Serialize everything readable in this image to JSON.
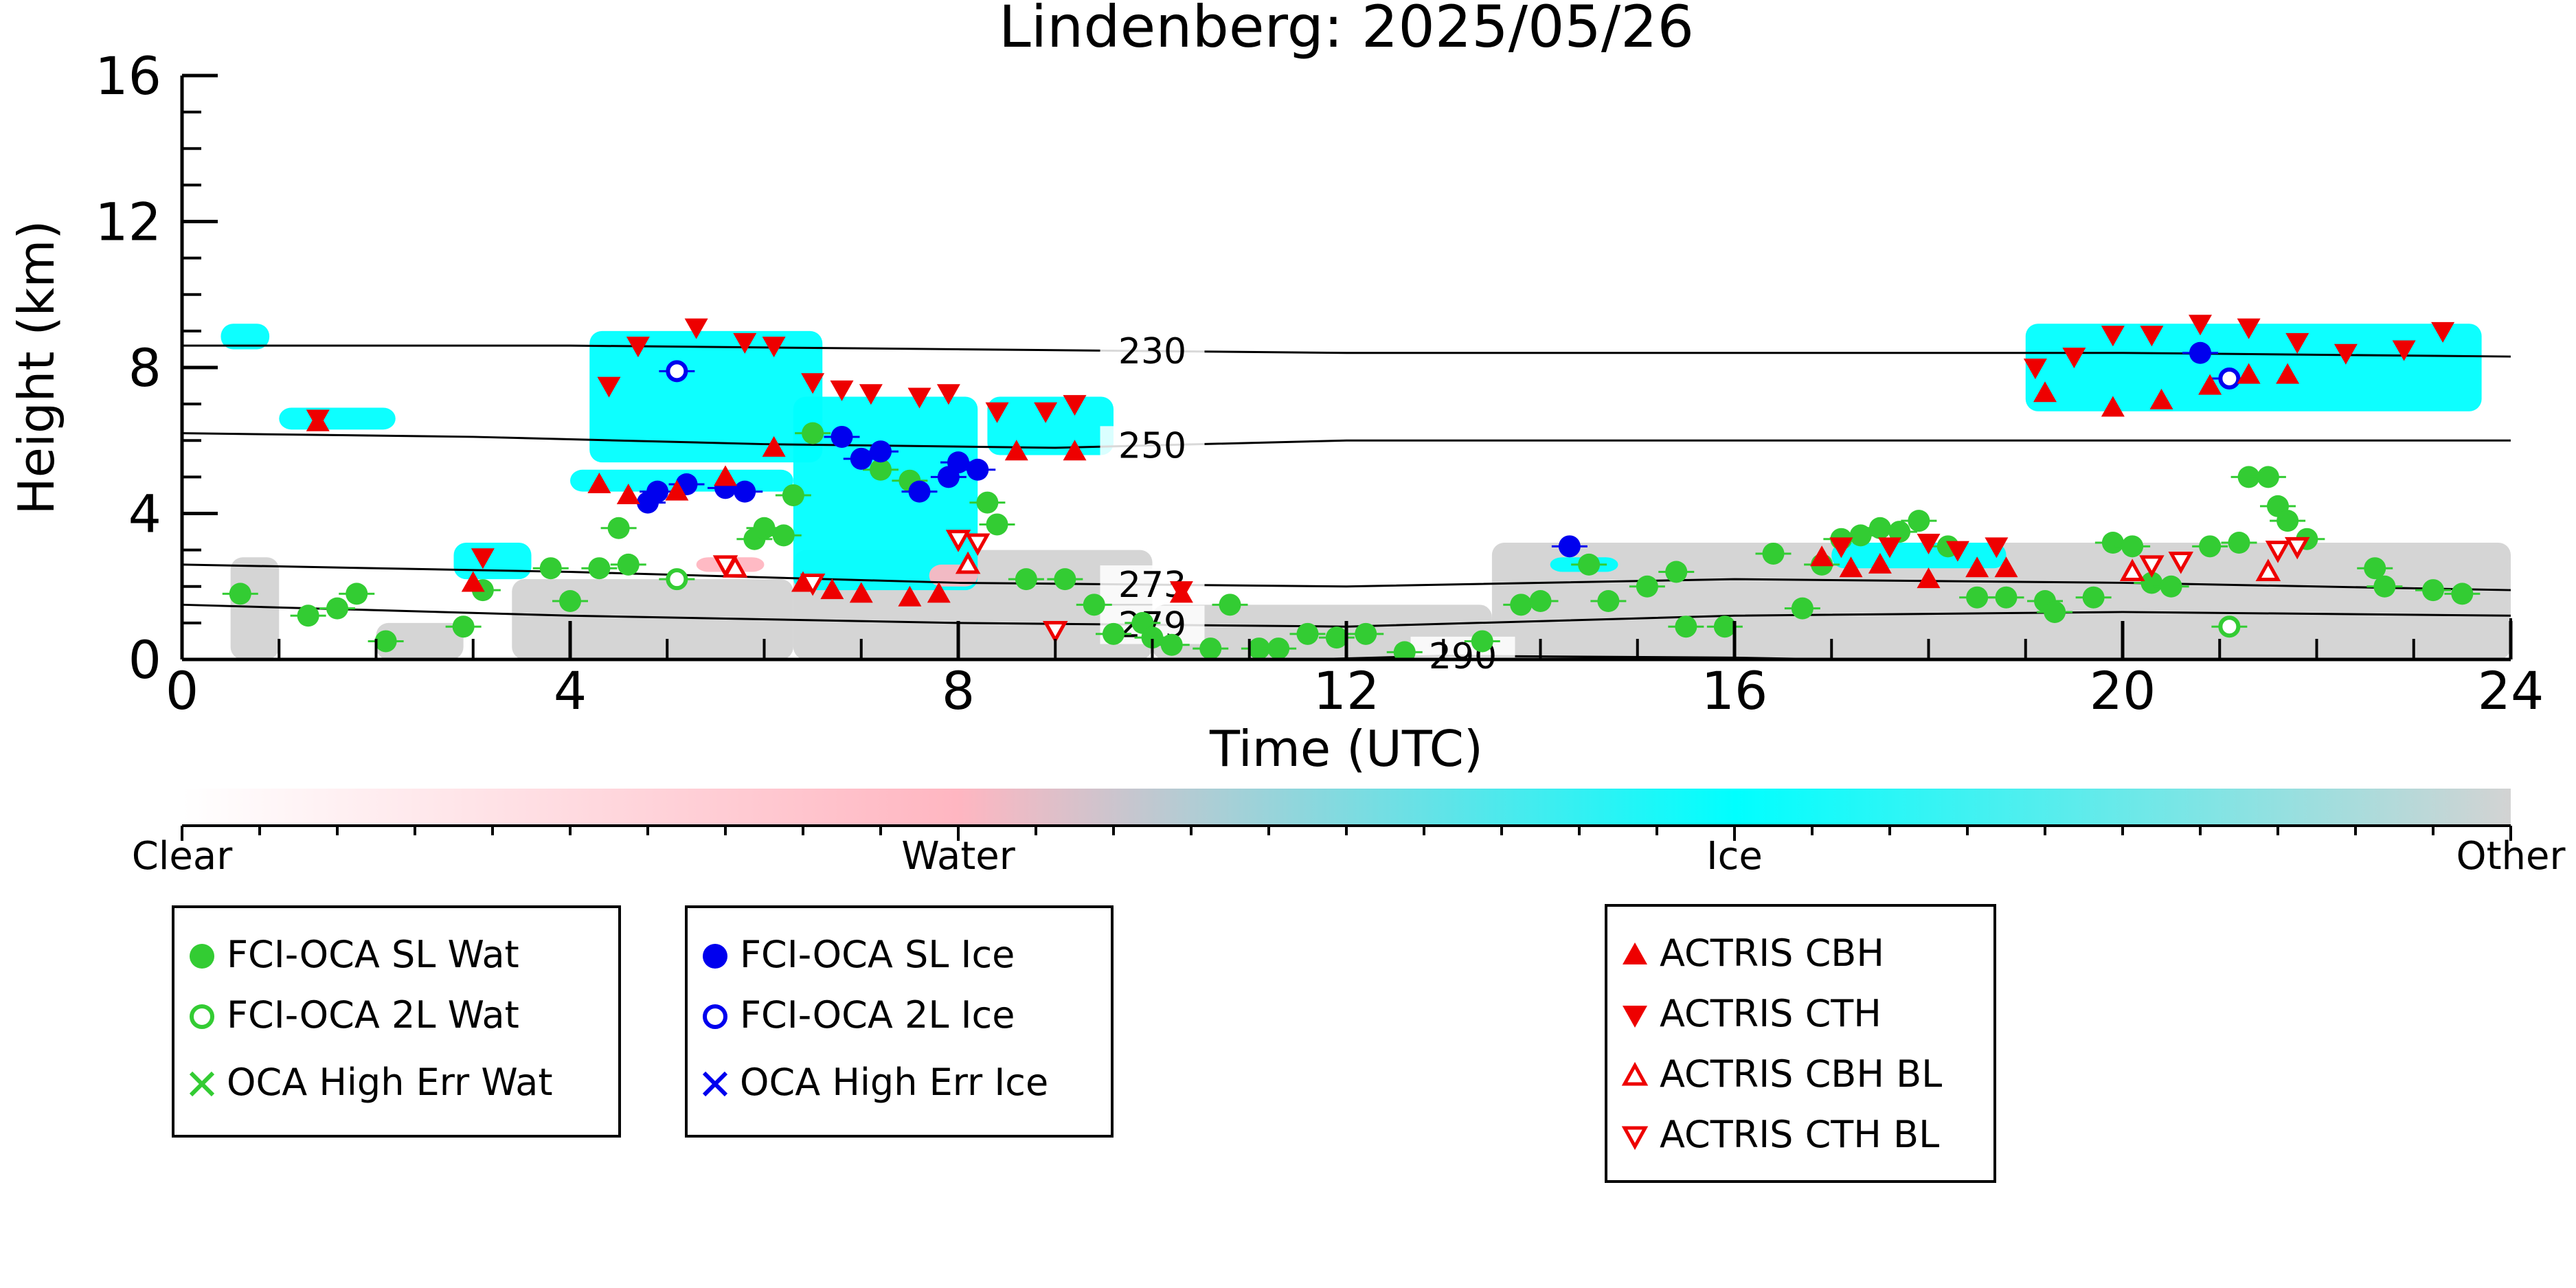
{
  "chart_data": {
    "type": "scatter",
    "title": "Lindenberg: 2025/05/26",
    "xlabel": "Time (UTC)",
    "ylabel": "Height (km)",
    "xlim": [
      0,
      24
    ],
    "ylim": [
      0,
      16
    ],
    "xticks": [
      "0",
      "4",
      "8",
      "12",
      "16",
      "20",
      "24"
    ],
    "yticks": [
      "0",
      "4",
      "8",
      "12",
      "16"
    ],
    "colorbar": {
      "labels": [
        "Clear",
        "Water",
        "Ice",
        "Other"
      ],
      "colors": [
        "#ffffff",
        "#ffb6c1",
        "#00ffff",
        "#d3d3d3"
      ]
    },
    "temperature_contours": [
      {
        "label": "230",
        "label_x": 10.0,
        "points": [
          [
            0,
            8.6
          ],
          [
            4,
            8.6
          ],
          [
            8,
            8.5
          ],
          [
            12,
            8.4
          ],
          [
            16,
            8.4
          ],
          [
            20,
            8.4
          ],
          [
            24,
            8.3
          ]
        ]
      },
      {
        "label": "250",
        "label_x": 10.0,
        "points": [
          [
            0,
            6.2
          ],
          [
            3,
            6.1
          ],
          [
            6,
            5.9
          ],
          [
            9,
            5.8
          ],
          [
            12,
            6.0
          ],
          [
            16,
            6.0
          ],
          [
            20,
            6.0
          ],
          [
            24,
            6.0
          ]
        ]
      },
      {
        "label": "273",
        "label_x": 10.0,
        "points": [
          [
            0,
            2.6
          ],
          [
            4,
            2.4
          ],
          [
            8,
            2.1
          ],
          [
            12,
            2.0
          ],
          [
            16,
            2.2
          ],
          [
            20,
            2.1
          ],
          [
            24,
            1.9
          ]
        ]
      },
      {
        "label": "279",
        "label_x": 10.0,
        "points": [
          [
            0,
            1.5
          ],
          [
            4,
            1.2
          ],
          [
            8,
            1.0
          ],
          [
            12,
            0.9
          ],
          [
            16,
            1.2
          ],
          [
            20,
            1.3
          ],
          [
            24,
            1.2
          ]
        ]
      },
      {
        "label": "290",
        "label_x": 13.2,
        "points": [
          [
            11.6,
            0.0
          ],
          [
            13.0,
            0.1
          ],
          [
            16,
            0.05
          ],
          [
            17,
            0.0
          ]
        ]
      }
    ],
    "series": [
      {
        "name": "FCI-OCA SL Wat",
        "color": "#33cc33",
        "marker": "circle-filled",
        "points": [
          [
            0.6,
            1.8
          ],
          [
            1.3,
            1.2
          ],
          [
            1.6,
            1.4
          ],
          [
            1.8,
            1.8
          ],
          [
            2.1,
            0.5
          ],
          [
            2.9,
            0.9
          ],
          [
            3.1,
            1.9
          ],
          [
            3.8,
            2.5
          ],
          [
            4.0,
            1.6
          ],
          [
            4.3,
            2.5
          ],
          [
            4.5,
            3.6
          ],
          [
            4.6,
            2.6
          ],
          [
            5.9,
            3.3
          ],
          [
            6.0,
            3.6
          ],
          [
            6.2,
            3.4
          ],
          [
            6.3,
            4.5
          ],
          [
            6.5,
            6.2
          ],
          [
            7.2,
            5.2
          ],
          [
            7.5,
            4.9
          ],
          [
            8.3,
            4.3
          ],
          [
            8.4,
            3.7
          ],
          [
            8.7,
            2.2
          ],
          [
            9.1,
            2.2
          ],
          [
            9.4,
            1.5
          ],
          [
            9.6,
            0.7
          ],
          [
            9.9,
            1.0
          ],
          [
            10.0,
            0.6
          ],
          [
            10.2,
            0.4
          ],
          [
            10.6,
            0.3
          ],
          [
            10.8,
            1.5
          ],
          [
            11.1,
            0.3
          ],
          [
            11.3,
            0.3
          ],
          [
            11.6,
            0.7
          ],
          [
            11.9,
            0.6
          ],
          [
            12.2,
            0.7
          ],
          [
            12.6,
            0.2
          ],
          [
            13.4,
            0.5
          ],
          [
            13.8,
            1.5
          ],
          [
            14.0,
            1.6
          ],
          [
            14.5,
            2.6
          ],
          [
            14.7,
            1.6
          ],
          [
            15.1,
            2.0
          ],
          [
            15.4,
            2.4
          ],
          [
            15.5,
            0.9
          ],
          [
            15.9,
            0.9
          ],
          [
            16.4,
            2.9
          ],
          [
            16.7,
            1.4
          ],
          [
            16.9,
            2.6
          ],
          [
            17.1,
            3.3
          ],
          [
            17.3,
            3.4
          ],
          [
            17.5,
            3.6
          ],
          [
            17.7,
            3.5
          ],
          [
            17.9,
            3.8
          ],
          [
            18.2,
            3.1
          ],
          [
            18.5,
            1.7
          ],
          [
            18.8,
            1.7
          ],
          [
            19.2,
            1.6
          ],
          [
            19.3,
            1.3
          ],
          [
            19.7,
            1.7
          ],
          [
            19.9,
            3.2
          ],
          [
            20.1,
            3.1
          ],
          [
            20.3,
            2.1
          ],
          [
            20.5,
            2.0
          ],
          [
            20.9,
            3.1
          ],
          [
            21.2,
            3.2
          ],
          [
            21.3,
            5.0
          ],
          [
            21.5,
            5.0
          ],
          [
            21.6,
            4.2
          ],
          [
            21.7,
            3.8
          ],
          [
            21.9,
            3.3
          ],
          [
            22.6,
            2.5
          ],
          [
            22.7,
            2.0
          ],
          [
            23.2,
            1.9
          ],
          [
            23.5,
            1.8
          ]
        ]
      },
      {
        "name": "FCI-OCA 2L Wat",
        "color": "#33cc33",
        "marker": "circle-open",
        "points": [
          [
            5.1,
            2.2
          ],
          [
            21.1,
            0.9
          ]
        ]
      },
      {
        "name": "OCA High Err Wat",
        "color": "#33cc33",
        "marker": "x",
        "points": []
      },
      {
        "name": "FCI-OCA SL Ice",
        "color": "#0000ee",
        "marker": "circle-filled",
        "points": [
          [
            4.8,
            4.3
          ],
          [
            4.9,
            4.6
          ],
          [
            5.2,
            4.8
          ],
          [
            5.6,
            4.7
          ],
          [
            5.8,
            4.6
          ],
          [
            6.8,
            6.1
          ],
          [
            7.0,
            5.5
          ],
          [
            7.2,
            5.7
          ],
          [
            7.6,
            4.6
          ],
          [
            7.9,
            5.0
          ],
          [
            8.0,
            5.4
          ],
          [
            8.2,
            5.2
          ],
          [
            14.3,
            3.1
          ],
          [
            20.8,
            8.4
          ]
        ]
      },
      {
        "name": "FCI-OCA 2L Ice",
        "color": "#0000ee",
        "marker": "circle-open",
        "points": [
          [
            5.1,
            7.9
          ],
          [
            21.1,
            7.7
          ]
        ]
      },
      {
        "name": "OCA High Err Ice",
        "color": "#0000ee",
        "marker": "x",
        "points": []
      },
      {
        "name": "ACTRIS CBH",
        "color": "#ee0000",
        "marker": "triangle-up",
        "points": [
          [
            1.4,
            6.5
          ],
          [
            3.0,
            2.1
          ],
          [
            4.3,
            4.8
          ],
          [
            4.6,
            4.5
          ],
          [
            5.1,
            4.6
          ],
          [
            5.6,
            5.0
          ],
          [
            6.1,
            5.8
          ],
          [
            6.4,
            2.1
          ],
          [
            6.7,
            1.9
          ],
          [
            7.0,
            1.8
          ],
          [
            7.5,
            1.7
          ],
          [
            7.8,
            1.8
          ],
          [
            8.6,
            5.7
          ],
          [
            9.2,
            5.7
          ],
          [
            10.3,
            1.8
          ],
          [
            16.9,
            2.8
          ],
          [
            17.2,
            2.5
          ],
          [
            17.5,
            2.6
          ],
          [
            18.0,
            2.2
          ],
          [
            18.5,
            2.5
          ],
          [
            18.8,
            2.5
          ],
          [
            19.2,
            7.3
          ],
          [
            19.9,
            6.9
          ],
          [
            20.4,
            7.1
          ],
          [
            20.9,
            7.5
          ],
          [
            21.3,
            7.8
          ],
          [
            21.7,
            7.8
          ]
        ]
      },
      {
        "name": "ACTRIS CTH",
        "color": "#ee0000",
        "marker": "triangle-down",
        "points": [
          [
            1.4,
            6.6
          ],
          [
            3.1,
            2.8
          ],
          [
            4.4,
            7.5
          ],
          [
            4.7,
            8.6
          ],
          [
            5.3,
            9.1
          ],
          [
            5.8,
            8.7
          ],
          [
            6.1,
            8.6
          ],
          [
            6.5,
            7.6
          ],
          [
            6.8,
            7.4
          ],
          [
            7.1,
            7.3
          ],
          [
            7.6,
            7.2
          ],
          [
            7.9,
            7.3
          ],
          [
            8.4,
            6.8
          ],
          [
            8.9,
            6.8
          ],
          [
            9.2,
            7.0
          ],
          [
            10.3,
            1.9
          ],
          [
            17.1,
            3.1
          ],
          [
            17.6,
            3.1
          ],
          [
            18.0,
            3.2
          ],
          [
            18.3,
            3.0
          ],
          [
            18.7,
            3.1
          ],
          [
            19.1,
            8.0
          ],
          [
            19.5,
            8.3
          ],
          [
            19.9,
            8.9
          ],
          [
            20.3,
            8.9
          ],
          [
            20.8,
            9.2
          ],
          [
            21.3,
            9.1
          ],
          [
            21.8,
            8.7
          ],
          [
            22.3,
            8.4
          ],
          [
            22.9,
            8.5
          ],
          [
            23.3,
            9.0
          ]
        ]
      },
      {
        "name": "ACTRIS CBH BL",
        "color": "#ee0000",
        "marker": "triangle-up-open",
        "points": [
          [
            5.7,
            2.5
          ],
          [
            8.1,
            2.6
          ],
          [
            20.1,
            2.4
          ],
          [
            21.5,
            2.4
          ]
        ]
      },
      {
        "name": "ACTRIS CTH BL",
        "color": "#ee0000",
        "marker": "triangle-down-open",
        "points": [
          [
            5.6,
            2.6
          ],
          [
            6.5,
            2.1
          ],
          [
            8.0,
            3.3
          ],
          [
            8.2,
            3.2
          ],
          [
            9.0,
            0.8
          ],
          [
            20.3,
            2.6
          ],
          [
            20.6,
            2.7
          ],
          [
            21.6,
            3.0
          ],
          [
            21.8,
            3.1
          ]
        ]
      }
    ],
    "legend": [
      [
        "FCI-OCA SL Wat",
        "FCI-OCA 2L Wat",
        "OCA High Err Wat"
      ],
      [
        "FCI-OCA SL Ice",
        "FCI-OCA 2L Ice",
        "OCA High Err Ice"
      ],
      [
        "ACTRIS CBH",
        "ACTRIS CTH",
        "ACTRIS CBH BL",
        "ACTRIS CTH BL"
      ]
    ]
  }
}
